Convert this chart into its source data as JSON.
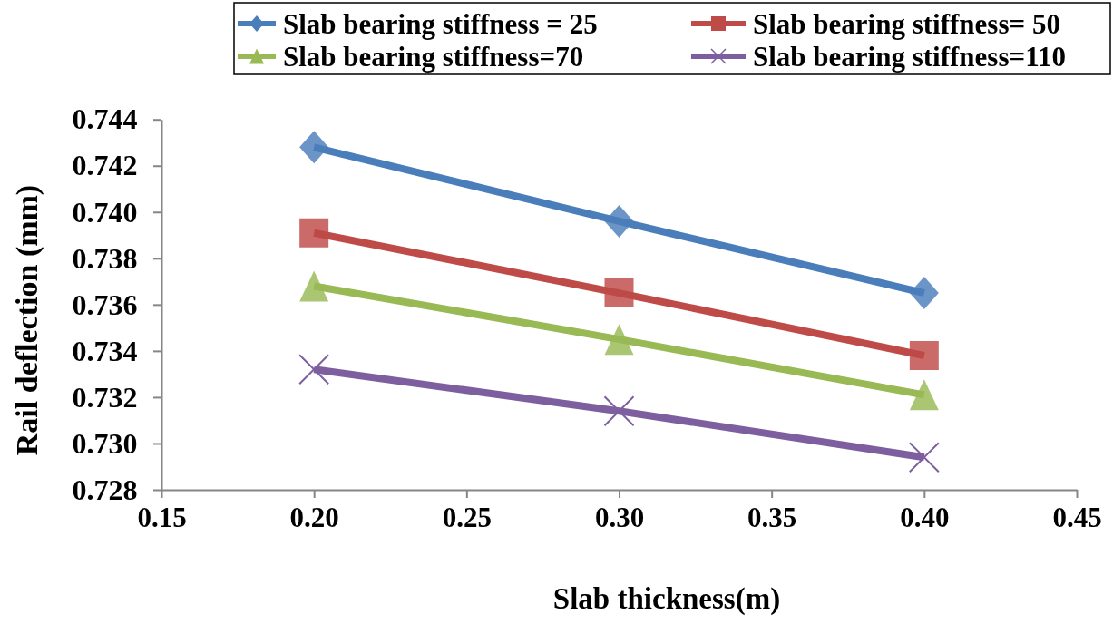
{
  "chart_data": {
    "type": "line",
    "xlabel": "Slab thickness(m)",
    "ylabel": "Rail deflection (mm)",
    "x": [
      0.2,
      0.3,
      0.4
    ],
    "xlim": [
      0.15,
      0.45
    ],
    "xticks": [
      0.15,
      {
        "value": 0.2,
        "label": "0.20"
      },
      0.25,
      {
        "value": 0.3,
        "label": "0.30"
      },
      0.35,
      {
        "value": 0.4,
        "label": "0.40"
      },
      0.45
    ],
    "ylim": [
      0.728,
      0.744
    ],
    "yticks": [
      0.728,
      {
        "value": 0.73,
        "label": "0.730"
      },
      0.732,
      0.734,
      0.736,
      0.738,
      {
        "value": 0.74,
        "label": "0.740"
      },
      0.742,
      0.744
    ],
    "legend": "top",
    "line_style": "solid",
    "series": [
      {
        "name": "Slab bearing stiffness = 25",
        "color": "#4a7ebb",
        "marker": "diamond",
        "values": [
          0.7428,
          0.7396,
          0.7365
        ]
      },
      {
        "name": "Slab bearing stiffness= 50",
        "color": "#be4b48",
        "marker": "square",
        "values": [
          0.7391,
          0.7365,
          0.7338
        ]
      },
      {
        "name": "Slab bearing stiffness=70",
        "color": "#98b954",
        "marker": "triangle",
        "values": [
          0.7368,
          0.7345,
          0.7321
        ]
      },
      {
        "name": "Slab bearing stiffness=110",
        "color": "#7d5fa0",
        "marker": "cross",
        "values": [
          0.7332,
          0.7314,
          0.7294
        ]
      }
    ]
  }
}
